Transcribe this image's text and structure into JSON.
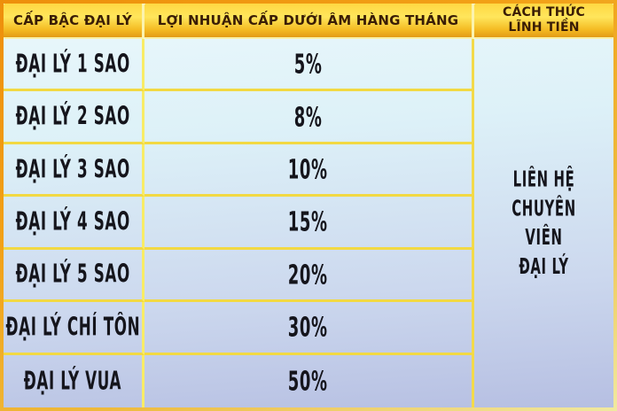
{
  "table": {
    "columns": [
      {
        "header": "CẤP BẬC ĐẠI LÝ"
      },
      {
        "header": "LỢI NHUẬN CẤP DƯỚI ÂM HÀNG THÁNG"
      },
      {
        "header_lines": [
          "CÁCH THỨC",
          "LĨNH TIỀN"
        ]
      }
    ],
    "rows": [
      {
        "rank": "ĐẠI LÝ 1 SAO",
        "profit": "5%"
      },
      {
        "rank": "ĐẠI LÝ 2 SAO",
        "profit": "8%"
      },
      {
        "rank": "ĐẠI LÝ 3 SAO",
        "profit": "10%"
      },
      {
        "rank": "ĐẠI LÝ 4 SAO",
        "profit": "15%"
      },
      {
        "rank": "ĐẠI LÝ 5 SAO",
        "profit": "20%"
      },
      {
        "rank": "ĐẠI LÝ CHÍ TÔN",
        "profit": "30%"
      },
      {
        "rank": "ĐẠI LÝ VUA",
        "profit": "50%"
      }
    ],
    "payout_method_lines": [
      "LIÊN HỆ",
      "CHUYÊN VIÊN",
      "ĐẠI LÝ"
    ]
  },
  "colors": {
    "outer_border_orange": "#ee8f0b",
    "header_gold_top": "#ffd742",
    "header_gold_bottom": "#e29b15",
    "header_text": "#3a1d06",
    "grid_line_yellow": "#f2d943",
    "body_gradient_top": "#ebf8fb",
    "body_gradient_bottom": "#b6bfe2",
    "body_text": "#15151c"
  }
}
